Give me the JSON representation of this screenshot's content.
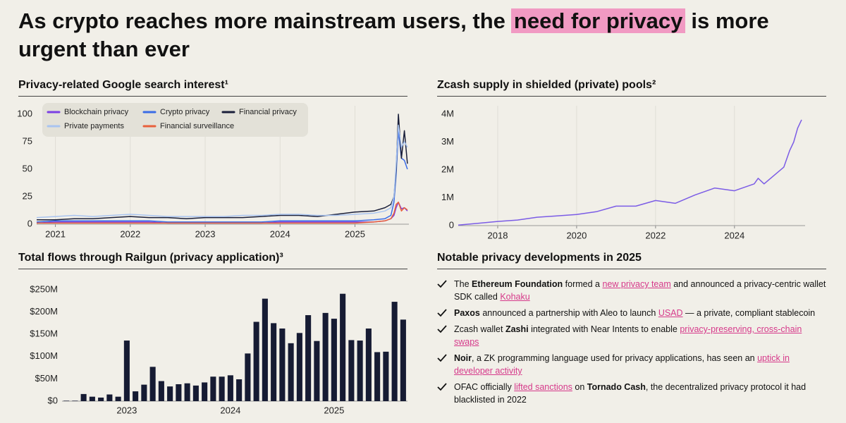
{
  "title": {
    "before": "As crypto reaches more mainstream users, the",
    "highlight": "need for privacy",
    "after": "is more urgent than ever"
  },
  "chart_data": [
    {
      "type": "line",
      "title": "Privacy-related Google search interest¹",
      "x": [
        2020.75,
        2021,
        2021.25,
        2021.5,
        2021.75,
        2022,
        2022.25,
        2022.5,
        2022.75,
        2023,
        2023.25,
        2023.5,
        2023.75,
        2024,
        2024.25,
        2024.5,
        2024.75,
        2025,
        2025.25,
        2025.4,
        2025.48,
        2025.52,
        2025.55,
        2025.58,
        2025.62,
        2025.66,
        2025.7
      ],
      "xlim": [
        2020.75,
        2025.72
      ],
      "xticks": [
        2021,
        2022,
        2023,
        2024,
        2025
      ],
      "ylim": [
        0,
        100
      ],
      "yticks": [
        0,
        25,
        50,
        75,
        100
      ],
      "grid": "x",
      "legend": "upper left",
      "series": [
        {
          "name": "Blockchain privacy",
          "color": "#7b3fe4",
          "values": [
            1,
            2,
            2,
            2,
            2,
            2,
            2,
            1,
            1,
            1,
            1,
            1,
            1,
            2,
            2,
            2,
            2,
            2,
            2,
            3,
            5,
            8,
            15,
            20,
            14,
            15,
            12
          ]
        },
        {
          "name": "Crypto privacy",
          "color": "#3b6ce6",
          "values": [
            2,
            3,
            3,
            3,
            3,
            3,
            3,
            2,
            2,
            2,
            2,
            2,
            2,
            3,
            3,
            3,
            3,
            3,
            4,
            5,
            8,
            20,
            45,
            85,
            60,
            58,
            50
          ]
        },
        {
          "name": "Financial privacy",
          "color": "#1a1f3a",
          "values": [
            4,
            4,
            5,
            5,
            6,
            7,
            6,
            6,
            5,
            6,
            6,
            6,
            7,
            8,
            8,
            7,
            9,
            11,
            12,
            15,
            18,
            25,
            50,
            100,
            60,
            85,
            55
          ]
        },
        {
          "name": "Private payments",
          "color": "#a9c4f0",
          "values": [
            6,
            7,
            8,
            7,
            8,
            9,
            8,
            7,
            7,
            7,
            7,
            8,
            8,
            9,
            9,
            8,
            8,
            9,
            10,
            12,
            15,
            25,
            55,
            90,
            70,
            75,
            70
          ]
        },
        {
          "name": "Financial surveillance",
          "color": "#e8603c",
          "values": [
            1,
            1,
            1,
            1,
            1,
            1,
            1,
            1,
            1,
            1,
            1,
            1,
            1,
            1,
            1,
            1,
            1,
            1,
            2,
            3,
            5,
            10,
            18,
            20,
            12,
            15,
            13
          ]
        }
      ]
    },
    {
      "type": "line",
      "title": "Zcash supply in shielded (private) pools²",
      "x": [
        2017,
        2017.5,
        2018,
        2018.5,
        2019,
        2019.5,
        2020,
        2020.5,
        2021,
        2021.5,
        2022,
        2022.5,
        2023,
        2023.5,
        2024,
        2024.5,
        2024.6,
        2024.75,
        2025,
        2025.25,
        2025.4,
        2025.5,
        2025.6,
        2025.7
      ],
      "values": [
        20000,
        80000,
        150000,
        200000,
        300000,
        350000,
        400000,
        500000,
        700000,
        700000,
        900000,
        800000,
        1100000,
        1350000,
        1250000,
        1500000,
        1700000,
        1500000,
        1800000,
        2100000,
        2700000,
        3000000,
        3500000,
        3800000
      ],
      "color": "#7b5ce6",
      "xlim": [
        2017,
        2025.79
      ],
      "xticks": [
        2018,
        2020,
        2022,
        2024
      ],
      "ylim": [
        0,
        4000000
      ],
      "yticks": [
        0,
        {
          "value": 1000000,
          "label": "1M"
        },
        {
          "value": 2000000,
          "label": "2M"
        },
        {
          "value": 3000000,
          "label": "3M"
        },
        {
          "value": 4000000,
          "label": "4M"
        }
      ],
      "grid": "x"
    },
    {
      "type": "bar",
      "title": "Total flows through Railgun (privacy application)³",
      "categories": [
        null,
        null,
        null,
        null,
        null,
        null,
        null,
        "2023",
        null,
        null,
        null,
        null,
        null,
        null,
        null,
        null,
        null,
        null,
        null,
        "2024",
        null,
        null,
        null,
        null,
        null,
        null,
        null,
        null,
        null,
        null,
        null,
        "2025",
        null,
        null,
        null,
        null,
        null,
        null,
        null,
        null
      ],
      "values": [
        1000000,
        1000000,
        16000000,
        10000000,
        8000000,
        15000000,
        10000000,
        136000000,
        22000000,
        37000000,
        77000000,
        45000000,
        33000000,
        38000000,
        40000000,
        35000000,
        42000000,
        55000000,
        55000000,
        58000000,
        49000000,
        107000000,
        178000000,
        230000000,
        175000000,
        163000000,
        130000000,
        153000000,
        193000000,
        135000000,
        198000000,
        185000000,
        241000000,
        137000000,
        136000000,
        163000000,
        110000000,
        111000000,
        223000000,
        183000000
      ],
      "color": "#161b33",
      "ylim": [
        0,
        250000000
      ],
      "yticks": [
        {
          "value": 0,
          "label": "$0"
        },
        {
          "value": 50000000,
          "label": "$50M"
        },
        {
          "value": 100000000,
          "label": "$100M"
        },
        {
          "value": 150000000,
          "label": "$150M"
        },
        {
          "value": 200000000,
          "label": "$200M"
        },
        {
          "value": 250000000,
          "label": "$250M"
        }
      ]
    }
  ],
  "developments": {
    "title": "Notable privacy developments in 2025",
    "items": [
      [
        {
          "text": "The ",
          "style": "plain"
        },
        {
          "text": "Ethereum Foundation",
          "style": "bold"
        },
        {
          "text": " formed a ",
          "style": "plain"
        },
        {
          "text": "new privacy team",
          "style": "link"
        },
        {
          "text": " and announced a privacy-centric wallet SDK called ",
          "style": "plain"
        },
        {
          "text": "Kohaku",
          "style": "link"
        }
      ],
      [
        {
          "text": "Paxos",
          "style": "bold"
        },
        {
          "text": " announced a partnership with Aleo to launch ",
          "style": "plain"
        },
        {
          "text": "USAD",
          "style": "link"
        },
        {
          "text": " — a private, compliant stablecoin",
          "style": "plain"
        }
      ],
      [
        {
          "text": "Zcash wallet ",
          "style": "plain"
        },
        {
          "text": "Zashi",
          "style": "bold"
        },
        {
          "text": " integrated with Near Intents to enable ",
          "style": "plain"
        },
        {
          "text": "privacy-preserving, cross-chain swaps",
          "style": "link"
        }
      ],
      [
        {
          "text": "Noir",
          "style": "bold"
        },
        {
          "text": ", a ZK programming language used for privacy applications, has seen an ",
          "style": "plain"
        },
        {
          "text": "uptick in developer activity",
          "style": "link"
        }
      ],
      [
        {
          "text": "OFAC officially ",
          "style": "plain"
        },
        {
          "text": "lifted sanctions",
          "style": "link"
        },
        {
          "text": " on ",
          "style": "plain"
        },
        {
          "text": "Tornado Cash",
          "style": "bold"
        },
        {
          "text": ", the decentralized privacy protocol it had blacklisted in 2022",
          "style": "plain"
        }
      ]
    ]
  }
}
